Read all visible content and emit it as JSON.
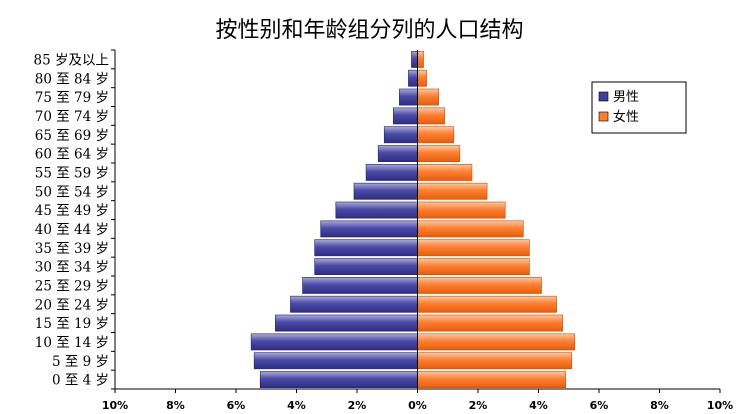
{
  "chart_data": {
    "type": "bar",
    "orientation": "horizontal",
    "title": "按性别和年龄组分列的人口结构",
    "categories": [
      "0 至 4 岁",
      "5 至 9 岁",
      "10 至 14 岁",
      "15 至 19 岁",
      "20 至 24 岁",
      "25 至 29 岁",
      "30 至 34 岁",
      "35 至 39 岁",
      "40 至 44 岁",
      "45 至 49 岁",
      "50 至 54 岁",
      "55 至 59 岁",
      "60 至 64 岁",
      "65 至 69 岁",
      "70 至 74 岁",
      "75 至 79 岁",
      "80 至 84 岁",
      "85 岁及以上"
    ],
    "series": [
      {
        "name": "男性",
        "color": "#3f3f9e",
        "values": [
          5.2,
          5.4,
          5.5,
          4.7,
          4.2,
          3.8,
          3.4,
          3.4,
          3.2,
          2.7,
          2.1,
          1.7,
          1.3,
          1.1,
          0.8,
          0.6,
          0.3,
          0.2
        ]
      },
      {
        "name": "女性",
        "color": "#ff7e2f",
        "values": [
          4.9,
          5.1,
          5.2,
          4.8,
          4.6,
          4.1,
          3.7,
          3.7,
          3.5,
          2.9,
          2.3,
          1.8,
          1.4,
          1.2,
          0.9,
          0.7,
          0.3,
          0.2
        ]
      }
    ],
    "xlim": [
      -10,
      10
    ],
    "x_ticks": [
      "10%",
      "8%",
      "6%",
      "4%",
      "2%",
      "0%",
      "2%",
      "4%",
      "6%",
      "8%",
      "10%"
    ],
    "legend_position": "top-right",
    "grid": false
  }
}
